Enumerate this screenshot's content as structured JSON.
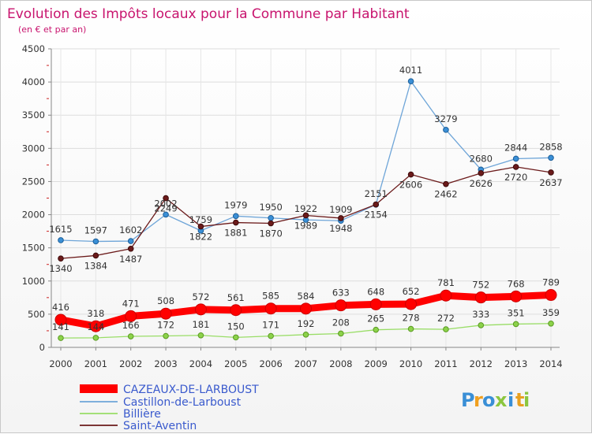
{
  "chart_data": {
    "type": "line",
    "title": "Evolution des Impôts locaux pour la Commune par Habitant",
    "subtitle": "(en € et par an)",
    "x": [
      "2000",
      "2001",
      "2002",
      "2003",
      "2004",
      "2005",
      "2006",
      "2007",
      "2008",
      "2009",
      "2010",
      "2011",
      "2012",
      "2013",
      "2014"
    ],
    "ylim": [
      0,
      4500
    ],
    "yticks": [
      0,
      500,
      1000,
      1500,
      2000,
      2500,
      3000,
      3500,
      4000,
      4500
    ],
    "grid": true,
    "legend_position": "bottom-left",
    "series": [
      {
        "name": "CAZEAUX-DE-LARBOUST",
        "color": "#ff0000",
        "values": [
          416,
          318,
          471,
          508,
          572,
          561,
          585,
          584,
          633,
          648,
          652,
          781,
          752,
          768,
          789
        ]
      },
      {
        "name": "Castillon-de-Larboust",
        "color": "#6ea5d8",
        "values": [
          1615,
          1597,
          1602,
          2002,
          1759,
          1979,
          1950,
          1922,
          1909,
          2151,
          4011,
          3279,
          2680,
          2844,
          2858
        ]
      },
      {
        "name": "Billière",
        "color": "#99dd66",
        "values": [
          141,
          144,
          166,
          172,
          181,
          150,
          171,
          192,
          208,
          265,
          278,
          272,
          333,
          351,
          359
        ]
      },
      {
        "name": "Saint-Aventin",
        "color": "#6b1a1a",
        "values": [
          1340,
          1384,
          1487,
          2249,
          1822,
          1881,
          1870,
          1989,
          1948,
          2154,
          2606,
          2462,
          2626,
          2720,
          2637
        ]
      }
    ]
  },
  "brand": {
    "letters": [
      "P",
      "r",
      "o",
      "x",
      "i",
      "t",
      "i"
    ],
    "colors": [
      "#3a8fd6",
      "#f0a020",
      "#3a8fd6",
      "#8cc63f",
      "#3a8fd6",
      "#e8a020",
      "#8cc63f"
    ]
  }
}
